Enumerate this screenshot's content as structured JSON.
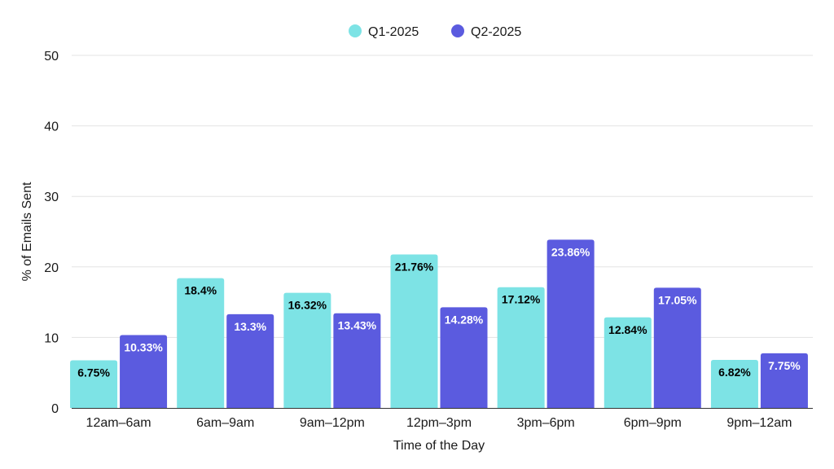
{
  "chart_data": {
    "type": "bar",
    "title": "",
    "xlabel": "Time of the Day",
    "ylabel": "% of Emails Sent",
    "ylim": [
      0,
      50
    ],
    "yticks": [
      0,
      10,
      20,
      30,
      40,
      50
    ],
    "grid": true,
    "legend_position": "top-center",
    "categories": [
      "12am–6am",
      "6am–9am",
      "9am–12pm",
      "12pm–3pm",
      "3pm–6pm",
      "6pm–9pm",
      "9pm–12am"
    ],
    "series": [
      {
        "name": "Q1-2025",
        "color": "#7de3e5",
        "label_color": "#000000",
        "values": [
          6.75,
          18.4,
          16.32,
          21.76,
          17.12,
          12.84,
          6.82
        ],
        "labels": [
          "6.75%",
          "18.4%",
          "16.32%",
          "21.76%",
          "17.12%",
          "12.84%",
          "6.82%"
        ]
      },
      {
        "name": "Q2-2025",
        "color": "#5b5bdf",
        "label_color": "#ffffff",
        "values": [
          10.33,
          13.3,
          13.43,
          14.28,
          23.86,
          17.05,
          7.75
        ],
        "labels": [
          "10.33%",
          "13.3%",
          "13.43%",
          "14.28%",
          "23.86%",
          "17.05%",
          "7.75%"
        ]
      }
    ]
  }
}
